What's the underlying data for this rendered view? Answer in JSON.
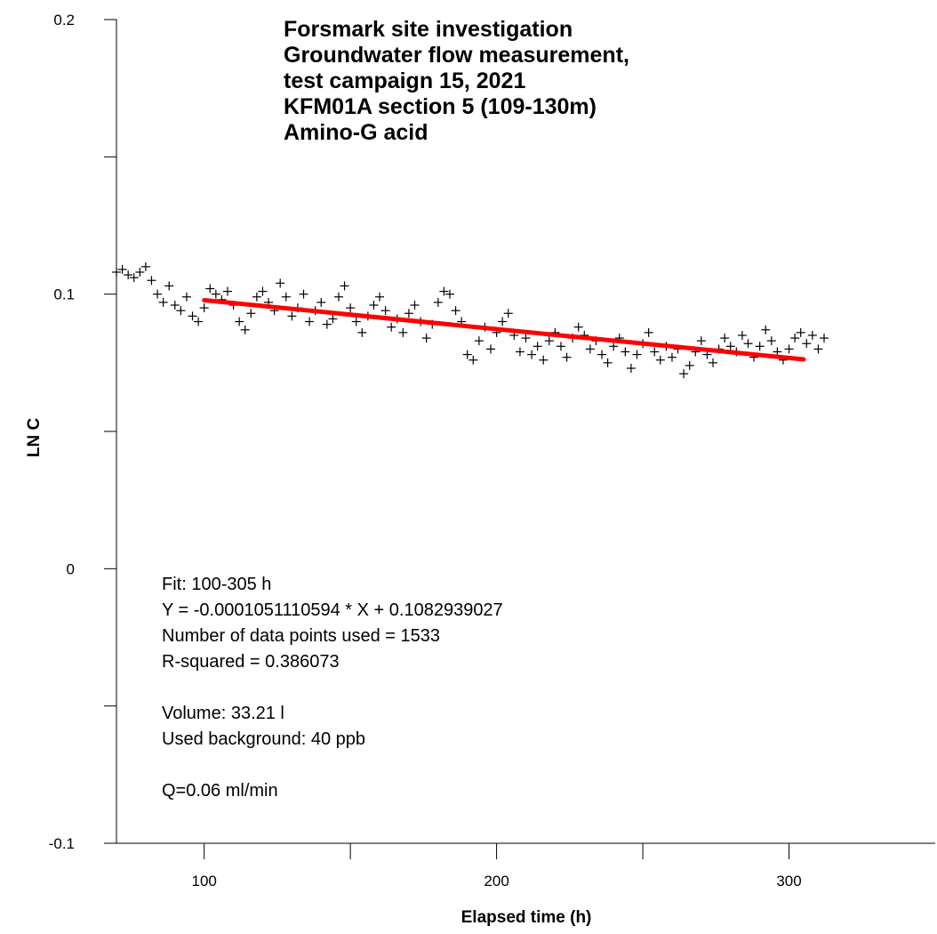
{
  "chart_data": {
    "type": "scatter",
    "title_lines": [
      "Forsmark site investigation",
      "Groundwater flow measurement,",
      "test campaign 15, 2021",
      "KFM01A section 5 (109-130m)",
      "Amino-G acid"
    ],
    "xlabel": "Elapsed time (h)",
    "ylabel": "LN C",
    "xlim": [
      70,
      350
    ],
    "ylim": [
      -0.1,
      0.2
    ],
    "x_ticks": [
      100,
      200,
      300
    ],
    "x_tick_labels": [
      "100",
      "200",
      "300"
    ],
    "x_minor_ticks": [
      150,
      250
    ],
    "y_ticks": [
      -0.1,
      0,
      0.1,
      0.2
    ],
    "y_tick_labels": [
      "-0.1",
      "0",
      "0.1",
      "0.2"
    ],
    "y_minor_ticks": [
      -0.05,
      0.05,
      0.15
    ],
    "grid": false,
    "marker": "+",
    "marker_color": "#000000",
    "series": [
      {
        "x": [
          70,
          72,
          74,
          76,
          78,
          80,
          82,
          84,
          86,
          88,
          90,
          92,
          94,
          96,
          98,
          100,
          102,
          104,
          106,
          108,
          110,
          112,
          114,
          116,
          118,
          120,
          122,
          124,
          126,
          128,
          130,
          132,
          134,
          136,
          138,
          140,
          142,
          144,
          146,
          148,
          150,
          152,
          154,
          156,
          158,
          160,
          162,
          164,
          166,
          168,
          170,
          172,
          174,
          176,
          178,
          180,
          182,
          184,
          186,
          188,
          190,
          192,
          194,
          196,
          198,
          200,
          202,
          204,
          206,
          208,
          210,
          212,
          214,
          216,
          218,
          220,
          222,
          224,
          226,
          228,
          230,
          232,
          234,
          236,
          238,
          240,
          242,
          244,
          246,
          248,
          250,
          252,
          254,
          256,
          258,
          260,
          262,
          264,
          266,
          268,
          270,
          272,
          274,
          276,
          278,
          280,
          282,
          284,
          286,
          288,
          290,
          292,
          294,
          296,
          298,
          300,
          302,
          304,
          306,
          308,
          310,
          312
        ],
        "y": [
          0.108,
          0.109,
          0.107,
          0.106,
          0.108,
          0.11,
          0.105,
          0.1,
          0.097,
          0.103,
          0.096,
          0.094,
          0.099,
          0.092,
          0.09,
          0.095,
          0.102,
          0.1,
          0.098,
          0.101,
          0.096,
          0.09,
          0.087,
          0.093,
          0.099,
          0.101,
          0.097,
          0.094,
          0.104,
          0.099,
          0.092,
          0.095,
          0.1,
          0.09,
          0.094,
          0.097,
          0.089,
          0.091,
          0.099,
          0.103,
          0.095,
          0.09,
          0.086,
          0.092,
          0.096,
          0.099,
          0.094,
          0.088,
          0.091,
          0.086,
          0.093,
          0.096,
          0.09,
          0.084,
          0.089,
          0.097,
          0.101,
          0.1,
          0.094,
          0.09,
          0.078,
          0.076,
          0.083,
          0.088,
          0.08,
          0.086,
          0.09,
          0.093,
          0.085,
          0.079,
          0.084,
          0.078,
          0.081,
          0.076,
          0.083,
          0.086,
          0.081,
          0.077,
          0.084,
          0.088,
          0.085,
          0.08,
          0.083,
          0.078,
          0.075,
          0.081,
          0.084,
          0.079,
          0.073,
          0.078,
          0.082,
          0.086,
          0.079,
          0.076,
          0.081,
          0.077,
          0.08,
          0.071,
          0.074,
          0.079,
          0.083,
          0.078,
          0.075,
          0.08,
          0.084,
          0.081,
          0.079,
          0.085,
          0.082,
          0.077,
          0.081,
          0.087,
          0.083,
          0.079,
          0.076,
          0.08,
          0.084,
          0.086,
          0.082,
          0.085,
          0.08,
          0.084
        ]
      },
      {
        "name": "",
        "type": "line",
        "x": [
          100,
          305
        ],
        "y": [
          0.09778,
          0.07624
        ],
        "color": "#ff0000"
      }
    ]
  },
  "annotation": {
    "lines": [
      "Fit: 100-305 h",
      "Y = -0.0001051110594 * X + 0.1082939027",
      "Number of data points used = 1533",
      "R-squared = 0.386073",
      "",
      "Volume: 33.21 l",
      "Used background: 40 ppb",
      "",
      "Q=0.06 ml/min"
    ]
  }
}
